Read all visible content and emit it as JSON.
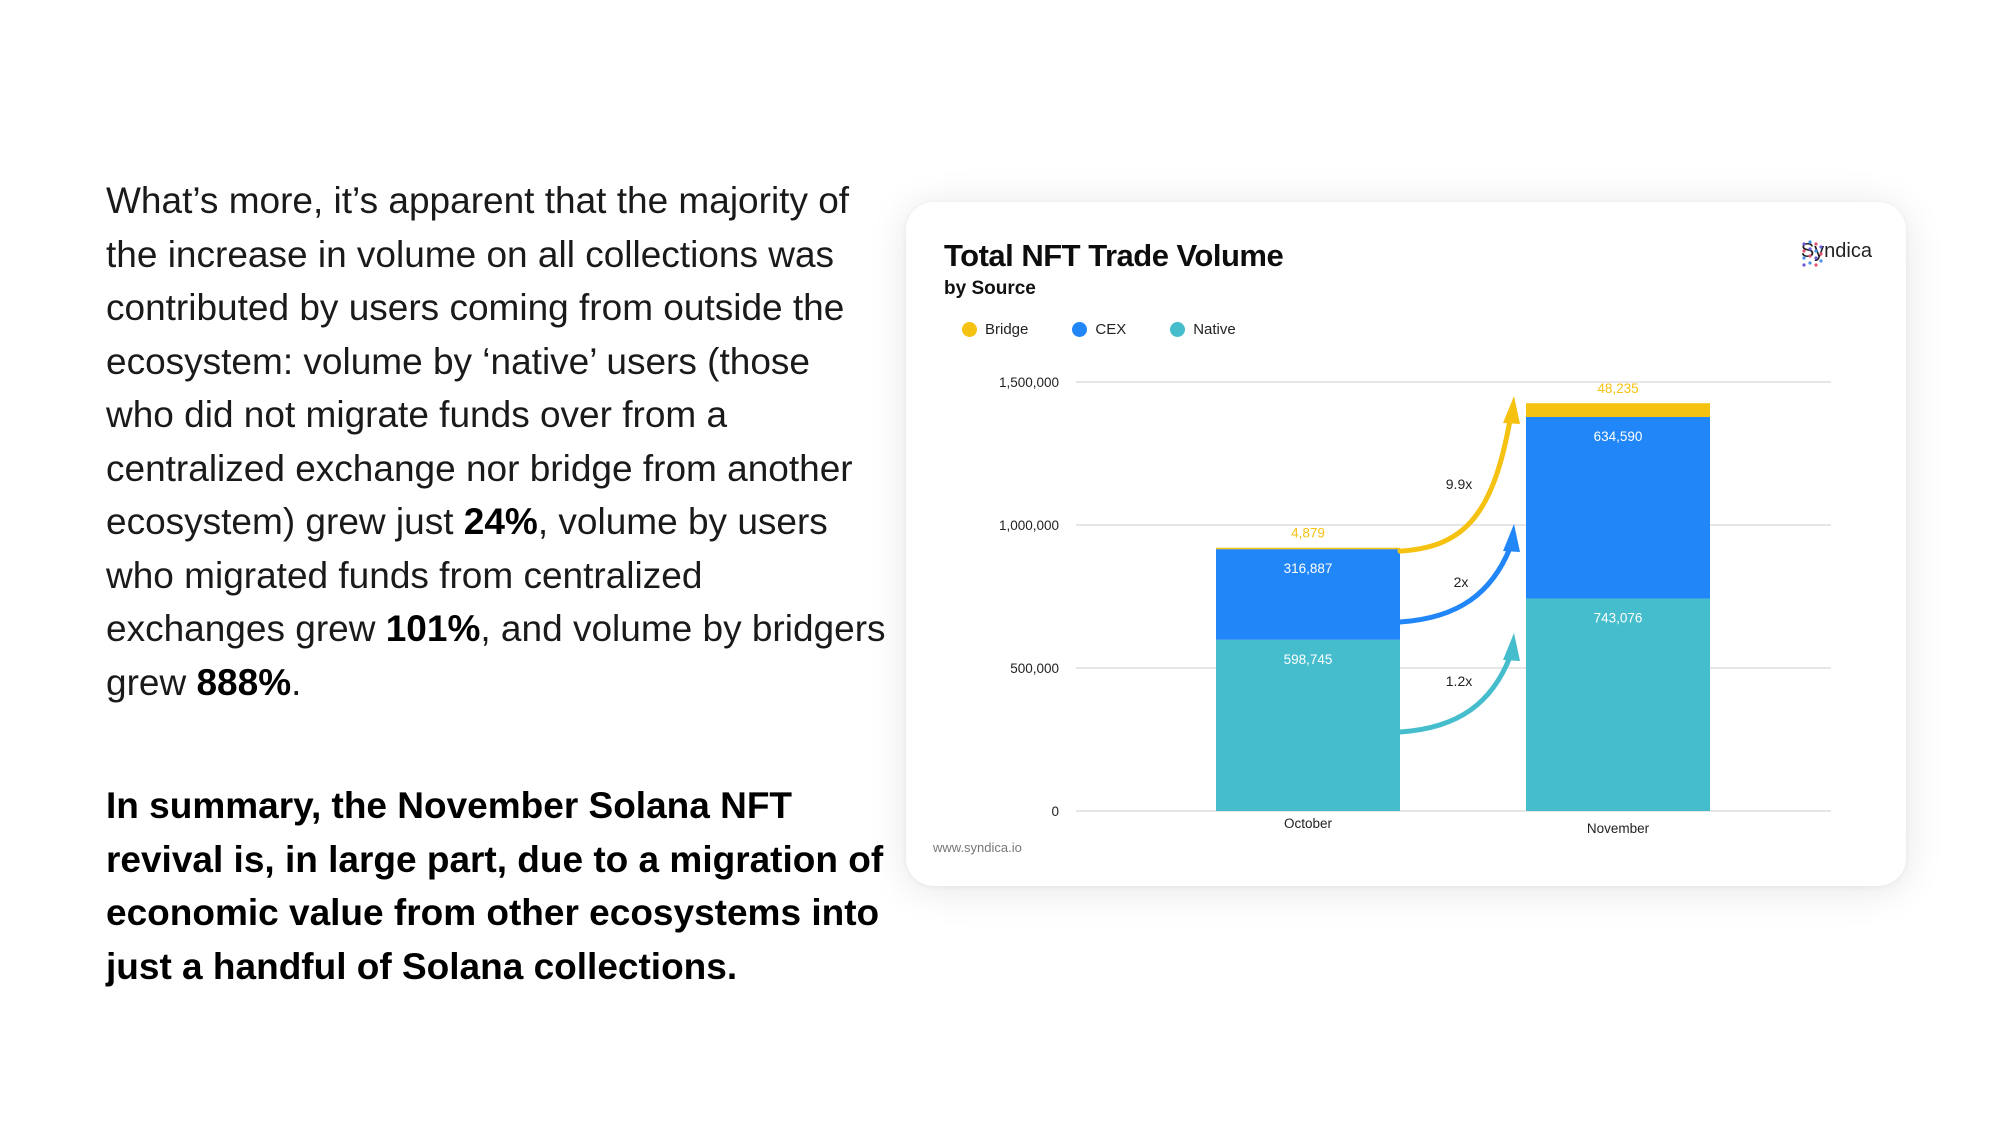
{
  "body": {
    "p1_a": "What’s more, it’s apparent that the majority of the increase in volume on all collections was contributed by users coming from outside the ecosystem: volume by ‘native’ users (those who did not migrate funds over from a centralized exchange nor bridge from another ecosystem) grew just ",
    "p1_b": "24%",
    "p1_c": ", volume by users who migrated funds from centralized exchanges grew ",
    "p1_d": "101%",
    "p1_e": ", and volume by bridgers grew ",
    "p1_f": "888%",
    "p1_g": ".",
    "summary": "In summary, the November Solana NFT revival is, in large part, due to a migration of economic value from other ecosystems into just a handful of Solana collections."
  },
  "brand": {
    "name": "Syndica",
    "icon": "syndica-logo-icon"
  },
  "source_url": "www.syndica.io",
  "colors": {
    "bridge": "#F5C211",
    "cex": "#2186F7",
    "native": "#45BDCD",
    "grid": "#d6d6d6"
  },
  "chart_data": {
    "type": "bar",
    "stacked": true,
    "title": "Total NFT Trade Volume",
    "subtitle": "by Source",
    "categories": [
      "October",
      "November"
    ],
    "series": [
      {
        "name": "Native",
        "values": [
          598745,
          743076
        ],
        "color": "#45BDCD",
        "labels": [
          "598,745",
          "743,076"
        ]
      },
      {
        "name": "CEX",
        "values": [
          316887,
          634590
        ],
        "color": "#2186F7",
        "labels": [
          "316,887",
          "634,590"
        ]
      },
      {
        "name": "Bridge",
        "values": [
          4879,
          48235
        ],
        "color": "#F5C211",
        "labels": [
          "4,879",
          "48,235"
        ]
      }
    ],
    "legend": [
      "Bridge",
      "CEX",
      "Native"
    ],
    "legend_placement": "top-left",
    "ylim": [
      0,
      1500000
    ],
    "yticks": [
      0,
      500000,
      1000000,
      1500000
    ],
    "ytick_labels": [
      "0",
      "500,000",
      "1,000,000",
      "1,500,000"
    ],
    "grid": true,
    "annotations": [
      {
        "series": "Bridge",
        "text": "9.9x"
      },
      {
        "series": "CEX",
        "text": "2x"
      },
      {
        "series": "Native",
        "text": "1.2x"
      }
    ]
  }
}
